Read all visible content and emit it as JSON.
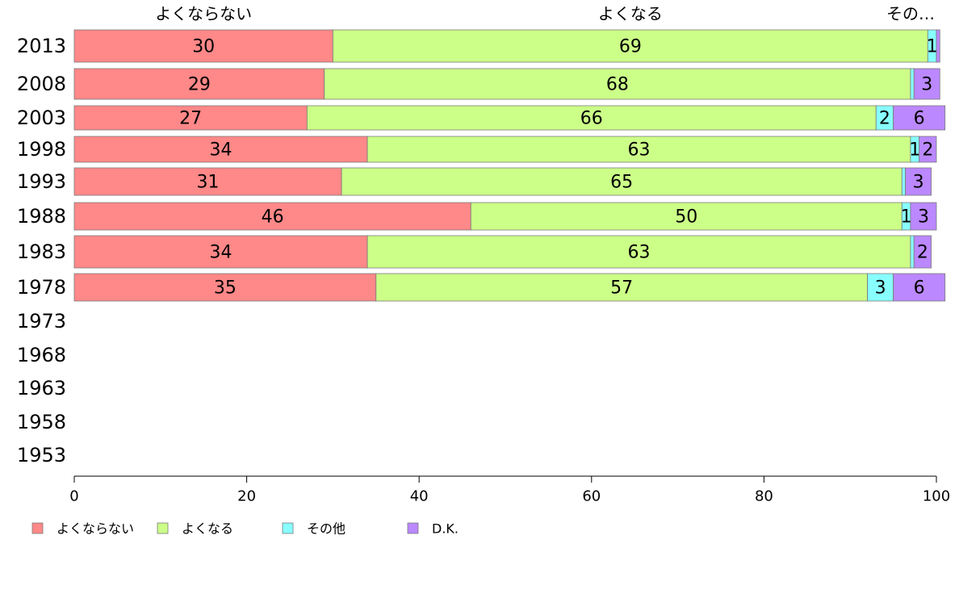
{
  "chart_data": {
    "type": "bar",
    "orientation": "horizontal",
    "stacked": true,
    "categories": [
      "2013",
      "2008",
      "2003",
      "1998",
      "1993",
      "1988",
      "1983",
      "1978",
      "1973",
      "1968",
      "1963",
      "1958",
      "1953"
    ],
    "series": [
      {
        "name": "よくならない",
        "color": "#ff8888",
        "values": [
          30,
          29,
          27,
          34,
          31,
          46,
          34,
          35,
          null,
          null,
          null,
          null,
          null
        ]
      },
      {
        "name": "よくなる",
        "color": "#ccff88",
        "values": [
          69,
          68,
          66,
          63,
          65,
          50,
          63,
          57,
          null,
          null,
          null,
          null,
          null
        ]
      },
      {
        "name": "その他",
        "color": "#88ffff",
        "values": [
          1,
          0.4,
          2,
          1,
          0.4,
          1,
          0.4,
          3,
          null,
          null,
          null,
          null,
          null
        ]
      },
      {
        "name": "D.K.",
        "color": "#bb88ff",
        "values": [
          0.4,
          3,
          6,
          2,
          3,
          3,
          2,
          6,
          null,
          null,
          null,
          null,
          null
        ]
      }
    ],
    "bar_labels": [
      [
        "30",
        "69",
        "1",
        ""
      ],
      [
        "29",
        "68",
        "",
        "3"
      ],
      [
        "27",
        "66",
        "2",
        "6"
      ],
      [
        "34",
        "63",
        "1",
        "2"
      ],
      [
        "31",
        "65",
        "",
        "3"
      ],
      [
        "46",
        "50",
        "1",
        "3"
      ],
      [
        "34",
        "63",
        "",
        "2"
      ],
      [
        "35",
        "57",
        "3",
        "6"
      ],
      [
        "",
        "",
        "",
        ""
      ],
      [
        "",
        "",
        "",
        ""
      ],
      [
        "",
        "",
        "",
        ""
      ],
      [
        "",
        "",
        "",
        ""
      ],
      [
        "",
        "",
        "",
        ""
      ]
    ],
    "column_headers": [
      "よくならない",
      "よくなる",
      "その…"
    ],
    "xlim": [
      0,
      100
    ],
    "xticks": [
      "0",
      "20",
      "40",
      "60",
      "80",
      "100"
    ],
    "legend_position": "bottom-left",
    "grid": false
  }
}
